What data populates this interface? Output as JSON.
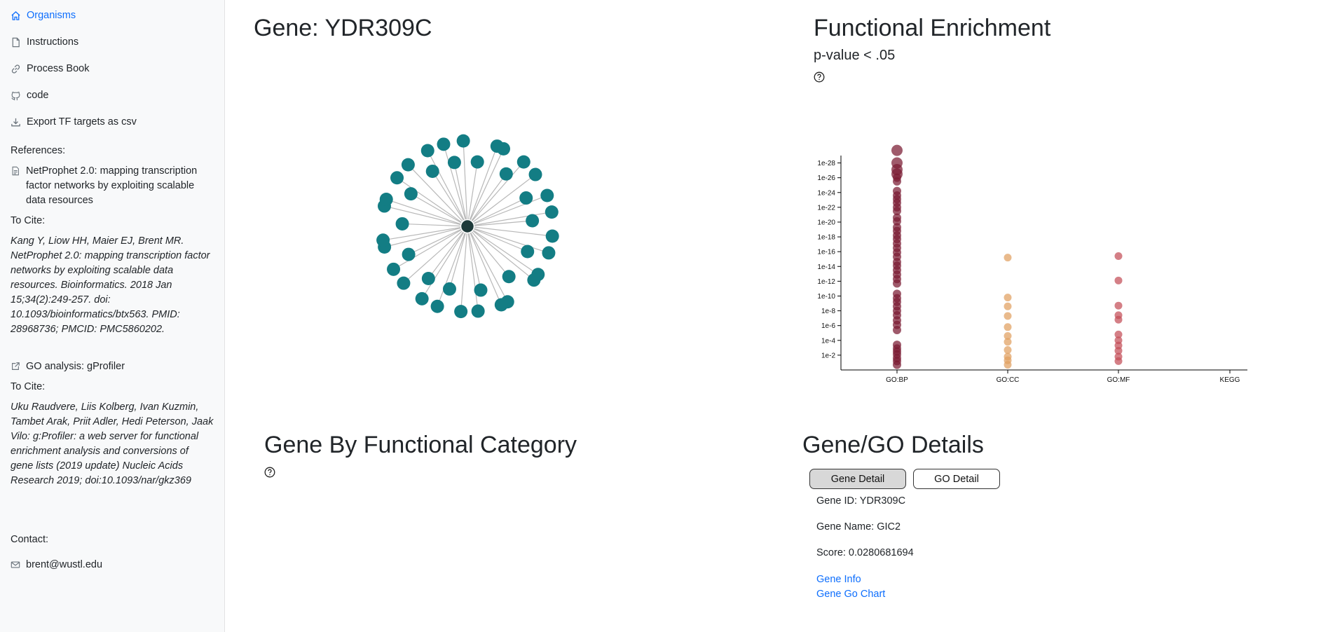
{
  "sidebar": {
    "nav": [
      {
        "label": "Organisms",
        "icon": "home-icon",
        "active": true
      },
      {
        "label": "Instructions",
        "icon": "file-icon"
      },
      {
        "label": "Process Book",
        "icon": "link-icon"
      },
      {
        "label": "code",
        "icon": "github-icon"
      },
      {
        "label": "Export TF targets as csv",
        "icon": "download-icon"
      }
    ],
    "references_label": "References:",
    "reference_link": "NetProphet 2.0: mapping transcription factor networks by exploiting scalable data resources",
    "to_cite_label": "To Cite:",
    "citation1": "Kang Y, Liow HH, Maier EJ, Brent MR. NetProphet 2.0: mapping transcription factor networks by exploiting scalable data resources. Bioinformatics. 2018 Jan 15;34(2):249-257. doi: 10.1093/bioinformatics/btx563. PMID: 28968736; PMCID: PMC5860202.",
    "go_analysis_link": "GO analysis: gProfiler",
    "to_cite_label2": "To Cite:",
    "citation2": "Uku Raudvere, Liis Kolberg, Ivan Kuzmin, Tambet Arak, Priit Adler, Hedi Peterson, Jaak Vilo: g:Profiler: a web server for functional enrichment analysis and conversions of gene lists (2019 update) Nucleic Acids Research 2019; doi:10.1093/nar/gkz369",
    "contact_label": "Contact:",
    "email": "brent@wustl.edu"
  },
  "gene_panel": {
    "title": "Gene: YDR309C",
    "network": {
      "center_color": "#1e3a3a",
      "node_color": "#137d84",
      "target_count": 41
    }
  },
  "enrichment": {
    "title": "Functional Enrichment",
    "subtitle": "p-value < .05",
    "help_icon": "question-circle-icon"
  },
  "chart_data": {
    "type": "scatter",
    "categories": [
      "GO:BP",
      "GO:CC",
      "GO:MF",
      "KEGG"
    ],
    "y_scale": "log",
    "yticks": [
      "1e-2",
      "1e-4",
      "1e-6",
      "1e-8",
      "1e-10",
      "1e-12",
      "1e-14",
      "1e-16",
      "1e-18",
      "1e-20",
      "1e-22",
      "1e-24",
      "1e-26",
      "1e-28"
    ],
    "ylim_exponent": [
      0,
      29
    ],
    "series": [
      {
        "category": "GO:BP",
        "color": "#7a1a32",
        "exponents": [
          29.7,
          28.0,
          27.1,
          26.5,
          26.0,
          25.5,
          24.2,
          23.6,
          23.1,
          22.6,
          22.0,
          21.5,
          20.6,
          20.1,
          19.3,
          18.8,
          18.2,
          17.7,
          17.1,
          16.5,
          15.9,
          15.3,
          14.6,
          14.1,
          13.5,
          12.9,
          12.3,
          11.7,
          10.3,
          9.7,
          9.2,
          8.6,
          8.0,
          7.4,
          6.7,
          6.1,
          5.4,
          3.4,
          2.9,
          2.5,
          2.1,
          1.6,
          1.2,
          0.7
        ]
      },
      {
        "category": "GO:CC",
        "color": "#e0a060",
        "exponents": [
          15.2,
          9.8,
          8.6,
          7.3,
          5.8,
          4.6,
          3.8,
          2.7,
          1.8,
          1.3,
          0.7
        ]
      },
      {
        "category": "GO:MF",
        "color": "#c44d58",
        "exponents": [
          15.4,
          12.1,
          8.7,
          7.4,
          6.8,
          4.8,
          4.0,
          3.3,
          2.6,
          1.8,
          1.2
        ]
      },
      {
        "category": "KEGG",
        "color": "#999999",
        "exponents": []
      }
    ]
  },
  "functional_category": {
    "title": "Gene By Functional Category",
    "help_icon": "question-circle-icon"
  },
  "details": {
    "title": "Gene/GO Details",
    "tab_gene": "Gene Detail",
    "tab_go": "GO Detail",
    "gene_id": "Gene ID: YDR309C",
    "gene_name": "Gene Name: GIC2",
    "score": "Score: 0.0280681694",
    "link_info": "Gene Info",
    "link_chart": "Gene Go Chart"
  }
}
